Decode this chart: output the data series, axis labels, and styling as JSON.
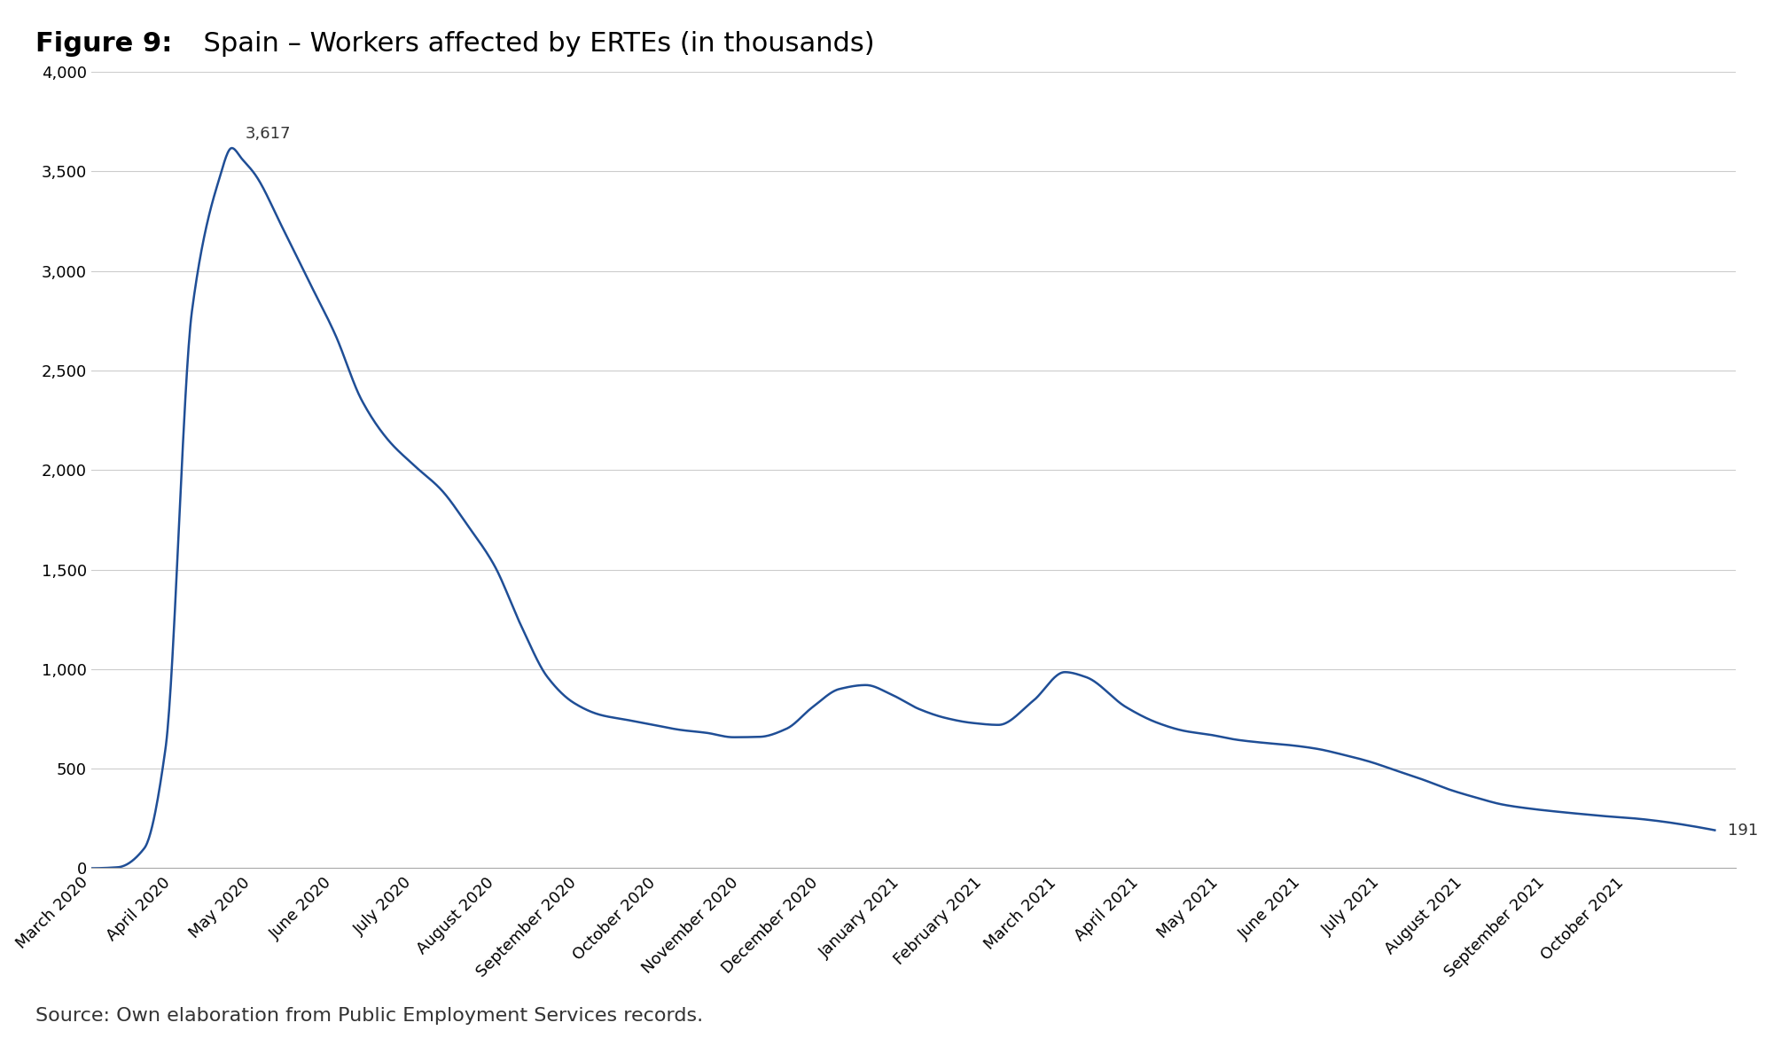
{
  "title_bold": "Figure 9:",
  "title_normal": "  Spain – Workers affected by ERTEs (in thousands)",
  "source_text": "Source: Own elaboration from Public Employment Services records.",
  "line_color": "#1F4E96",
  "line_width": 1.8,
  "background_color": "#ffffff",
  "ylim": [
    0,
    4000
  ],
  "yticks": [
    0,
    500,
    1000,
    1500,
    2000,
    2500,
    3000,
    3500,
    4000
  ],
  "peak_label": "3,617",
  "end_label": "191",
  "x_tick_labels": [
    "March 2020",
    "April 2020",
    "May 2020",
    "June 2020",
    "July 2020",
    "August 2020",
    "September 2020",
    "October 2020",
    "November 2020",
    "December 2020",
    "January 2021",
    "February 2021",
    "March 2021",
    "April 2021",
    "May 2021",
    "June 2021",
    "July 2021",
    "August 2021",
    "September 2021",
    "October 2021"
  ],
  "title_fontsize": 22,
  "source_fontsize": 16,
  "tick_fontsize": 13
}
